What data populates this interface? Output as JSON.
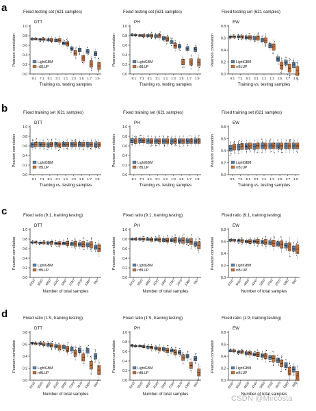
{
  "watermark": "CSDN @Mircosta",
  "colors": {
    "lightgbm": "#5b7fa6",
    "rrblup": "#c0703a",
    "axis": "#222222"
  },
  "rows": [
    {
      "letter": "a",
      "xlabel": "Training vs. testing samples",
      "panels": [
        {
          "title": "Fixed testing set (621 samples)",
          "trait": "DTT"
        },
        {
          "title": "Fixed testing set (621 samples)",
          "trait": "PH"
        },
        {
          "title": "Fixed testing set (621 samples)",
          "trait": "EW"
        }
      ]
    },
    {
      "letter": "b",
      "xlabel": "Training vs. testing samples",
      "panels": [
        {
          "title": "Fixed training set (621 samples)",
          "trait": "DTT"
        },
        {
          "title": "Fixed training set (621 samples)",
          "trait": "PH"
        },
        {
          "title": "Fixed training set (621 samples)",
          "trait": "EW"
        }
      ]
    },
    {
      "letter": "c",
      "xlabel": "Number of total samples",
      "panels": [
        {
          "title": "Fixed ratio (9:1, training:testing)",
          "trait": "DTT"
        },
        {
          "title": "Fixed ratio (9:1, training:testing)",
          "trait": "PH"
        },
        {
          "title": "Fixed ratio (9:1, training:testing)",
          "trait": "EW"
        }
      ]
    },
    {
      "letter": "d",
      "xlabel": "Number of total samples",
      "panels": [
        {
          "title": "Fixed ratio (1:9, training:testing)",
          "trait": "DTT"
        },
        {
          "title": "Fixed ratio (1:9, training:testing)",
          "trait": "PH"
        },
        {
          "title": "Fixed ratio (1:9, training:testing)",
          "trait": "EW"
        }
      ]
    }
  ],
  "chart_data": [
    {
      "type": "box",
      "row": "a",
      "trait": "DTT",
      "title": "Fixed testing set (621 samples)",
      "xlabel": "Training vs. testing samples",
      "ylabel": "Pearson correlation",
      "ylim": [
        0,
        1.0
      ],
      "yticks": [
        0,
        0.2,
        0.4,
        0.6,
        0.8,
        1.0
      ],
      "categories": [
        "9:1",
        "7:1",
        "5:1",
        "3:1",
        "1:1",
        "1:3",
        "1:5",
        "1:7",
        "1:9"
      ],
      "series": [
        {
          "name": "LightGBM",
          "medians": [
            0.73,
            0.72,
            0.71,
            0.7,
            0.64,
            0.53,
            0.5,
            0.47,
            0.42
          ]
        },
        {
          "name": "rrBLUP",
          "medians": [
            0.73,
            0.72,
            0.71,
            0.7,
            0.63,
            0.44,
            0.33,
            0.21,
            0.17
          ]
        }
      ]
    },
    {
      "type": "box",
      "row": "a",
      "trait": "PH",
      "title": "Fixed testing set (621 samples)",
      "xlabel": "Training vs. testing samples",
      "ylabel": "Pearson correlation",
      "ylim": [
        0,
        1.0
      ],
      "yticks": [
        0,
        0.2,
        0.4,
        0.6,
        0.8,
        1.0
      ],
      "categories": [
        "9:1",
        "7:1",
        "5:1",
        "3:1",
        "1:1",
        "1:3",
        "1:5",
        "1:7",
        "1:9"
      ],
      "series": [
        {
          "name": "LightGBM",
          "medians": [
            0.81,
            0.8,
            0.8,
            0.79,
            0.75,
            0.67,
            0.58,
            0.53,
            0.51
          ]
        },
        {
          "name": "rrBLUP",
          "medians": [
            0.81,
            0.8,
            0.8,
            0.79,
            0.73,
            0.59,
            0.25,
            0.25,
            0.24
          ]
        }
      ]
    },
    {
      "type": "box",
      "row": "a",
      "trait": "EW",
      "title": "Fixed testing set (621 samples)",
      "xlabel": "Training vs. testing samples",
      "ylabel": "Pearson correlation",
      "ylim": [
        0,
        0.8
      ],
      "yticks": [
        0,
        0.2,
        0.4,
        0.6,
        0.8
      ],
      "categories": [
        "9:1",
        "7:1",
        "5:1",
        "3:1",
        "1:1",
        "1:3",
        "1:5",
        "1:7",
        "1:9"
      ],
      "series": [
        {
          "name": "LightGBM",
          "medians": [
            0.62,
            0.62,
            0.61,
            0.6,
            0.57,
            0.47,
            0.25,
            0.19,
            0.15
          ]
        },
        {
          "name": "rrBLUP",
          "medians": [
            0.62,
            0.62,
            0.61,
            0.6,
            0.56,
            0.45,
            0.14,
            0.1,
            0.05
          ]
        }
      ]
    },
    {
      "type": "box",
      "row": "b",
      "trait": "DTT",
      "title": "Fixed training set (621 samples)",
      "xlabel": "Training vs. testing samples",
      "ylabel": "Pearson correlation",
      "ylim": [
        0,
        1.0
      ],
      "yticks": [
        0,
        0.2,
        0.4,
        0.6,
        0.8,
        1.0
      ],
      "categories": [
        "9:1",
        "7:1",
        "5:1",
        "3:1",
        "1:1",
        "1:3",
        "1:5",
        "1:7",
        "1:9"
      ],
      "series": [
        {
          "name": "LightGBM",
          "medians": [
            0.62,
            0.63,
            0.62,
            0.63,
            0.63,
            0.63,
            0.63,
            0.63,
            0.62
          ]
        },
        {
          "name": "rrBLUP",
          "medians": [
            0.63,
            0.63,
            0.63,
            0.62,
            0.63,
            0.63,
            0.63,
            0.63,
            0.63
          ]
        }
      ]
    },
    {
      "type": "box",
      "row": "b",
      "trait": "PH",
      "title": "Fixed training set (621 samples)",
      "xlabel": "Training vs. testing samples",
      "ylabel": "Pearson correlation",
      "ylim": [
        0,
        1.0
      ],
      "yticks": [
        0,
        0.2,
        0.4,
        0.6,
        0.8,
        1.0
      ],
      "categories": [
        "9:1",
        "7:1",
        "5:1",
        "3:1",
        "1:1",
        "1:3",
        "1:5",
        "1:7",
        "1:9"
      ],
      "series": [
        {
          "name": "LightGBM",
          "medians": [
            0.71,
            0.71,
            0.7,
            0.7,
            0.7,
            0.7,
            0.7,
            0.7,
            0.7
          ]
        },
        {
          "name": "rrBLUP",
          "medians": [
            0.7,
            0.71,
            0.7,
            0.7,
            0.7,
            0.7,
            0.7,
            0.7,
            0.7
          ]
        }
      ]
    },
    {
      "type": "box",
      "row": "b",
      "trait": "EW",
      "title": "Fixed training set (621 samples)",
      "xlabel": "Training vs. testing samples",
      "ylabel": "Pearson correlation",
      "ylim": [
        0,
        0.8
      ],
      "yticks": [
        0,
        0.2,
        0.4,
        0.6,
        0.8
      ],
      "categories": [
        "9:1",
        "7:1",
        "5:1",
        "3:1",
        "1:1",
        "1:3",
        "1:5",
        "1:7",
        "1:9"
      ],
      "series": [
        {
          "name": "LightGBM",
          "medians": [
            0.44,
            0.46,
            0.47,
            0.47,
            0.48,
            0.48,
            0.48,
            0.48,
            0.48
          ]
        },
        {
          "name": "rrBLUP",
          "medians": [
            0.46,
            0.47,
            0.48,
            0.48,
            0.48,
            0.48,
            0.48,
            0.48,
            0.48
          ]
        }
      ]
    },
    {
      "type": "box",
      "row": "c",
      "trait": "DTT",
      "title": "Fixed ratio (9:1, training:testing)",
      "xlabel": "Number of total samples",
      "ylabel": "Pearson correlation",
      "ylim": [
        0,
        1.0
      ],
      "yticks": [
        0,
        0.2,
        0.4,
        0.6,
        0.8,
        1.0
      ],
      "categories": [
        "6210",
        "5520",
        "4830",
        "4140",
        "3450",
        "2760",
        "2070",
        "1380",
        "690"
      ],
      "series": [
        {
          "name": "LightGBM",
          "medians": [
            0.73,
            0.72,
            0.72,
            0.71,
            0.71,
            0.7,
            0.69,
            0.68,
            0.63
          ]
        },
        {
          "name": "rrBLUP",
          "medians": [
            0.73,
            0.72,
            0.72,
            0.71,
            0.71,
            0.7,
            0.69,
            0.68,
            0.61
          ]
        }
      ]
    },
    {
      "type": "box",
      "row": "c",
      "trait": "PH",
      "title": "Fixed ratio (9:1, training:testing)",
      "xlabel": "Number of total samples",
      "ylabel": "Pearson correlation",
      "ylim": [
        0,
        1.0
      ],
      "yticks": [
        0,
        0.2,
        0.4,
        0.6,
        0.8,
        1.0
      ],
      "categories": [
        "6210",
        "5520",
        "4830",
        "4140",
        "3450",
        "2760",
        "2070",
        "1380",
        "690"
      ],
      "series": [
        {
          "name": "LightGBM",
          "medians": [
            0.8,
            0.8,
            0.79,
            0.79,
            0.78,
            0.78,
            0.77,
            0.76,
            0.7
          ]
        },
        {
          "name": "rrBLUP",
          "medians": [
            0.8,
            0.8,
            0.79,
            0.79,
            0.78,
            0.78,
            0.77,
            0.75,
            0.67
          ]
        }
      ]
    },
    {
      "type": "box",
      "row": "c",
      "trait": "EW",
      "title": "Fixed ratio (9:1, training:testing)",
      "xlabel": "Number of total samples",
      "ylabel": "Pearson correlation",
      "ylim": [
        0,
        0.8
      ],
      "yticks": [
        0,
        0.2,
        0.4,
        0.6,
        0.8
      ],
      "categories": [
        "6210",
        "5520",
        "4830",
        "4140",
        "3450",
        "2760",
        "2070",
        "1380",
        "690"
      ],
      "series": [
        {
          "name": "LightGBM",
          "medians": [
            0.62,
            0.61,
            0.6,
            0.6,
            0.59,
            0.58,
            0.56,
            0.53,
            0.48
          ]
        },
        {
          "name": "rrBLUP",
          "medians": [
            0.62,
            0.61,
            0.6,
            0.6,
            0.59,
            0.57,
            0.55,
            0.51,
            0.47
          ]
        }
      ]
    },
    {
      "type": "box",
      "row": "d",
      "trait": "DTT",
      "title": "Fixed ratio (1:9, training:testing)",
      "xlabel": "Number of total samples",
      "ylabel": "Pearson correlation",
      "ylim": [
        0,
        0.8
      ],
      "yticks": [
        0,
        0.2,
        0.4,
        0.6,
        0.8
      ],
      "categories": [
        "6210",
        "5520",
        "4830",
        "4140",
        "3450",
        "2760",
        "2070",
        "1380",
        "690"
      ],
      "series": [
        {
          "name": "LightGBM",
          "medians": [
            0.62,
            0.61,
            0.59,
            0.57,
            0.55,
            0.52,
            0.5,
            0.49,
            0.4
          ]
        },
        {
          "name": "rrBLUP",
          "medians": [
            0.61,
            0.6,
            0.58,
            0.55,
            0.52,
            0.45,
            0.38,
            0.25,
            0.17
          ]
        }
      ]
    },
    {
      "type": "box",
      "row": "d",
      "trait": "PH",
      "title": "Fixed ratio (1:9, training:testing)",
      "xlabel": "Number of total samples",
      "ylabel": "Pearson correlation",
      "ylim": [
        0,
        1.0
      ],
      "yticks": [
        0,
        0.2,
        0.4,
        0.6,
        0.8,
        1.0
      ],
      "categories": [
        "6210",
        "5520",
        "4830",
        "4140",
        "3450",
        "2760",
        "2070",
        "1380",
        "690"
      ],
      "series": [
        {
          "name": "LightGBM",
          "medians": [
            0.72,
            0.71,
            0.69,
            0.67,
            0.65,
            0.62,
            0.58,
            0.5,
            0.45
          ]
        },
        {
          "name": "rrBLUP",
          "medians": [
            0.71,
            0.7,
            0.68,
            0.65,
            0.62,
            0.58,
            0.47,
            0.31,
            0.16
          ]
        }
      ]
    },
    {
      "type": "box",
      "row": "d",
      "trait": "EW",
      "title": "Fixed ratio (1:9, training:testing)",
      "xlabel": "Number of total samples",
      "ylabel": "Pearson correlation",
      "ylim": [
        0,
        0.8
      ],
      "yticks": [
        0,
        0.2,
        0.4,
        0.6,
        0.8
      ],
      "categories": [
        "6210",
        "5520",
        "4830",
        "4140",
        "3450",
        "2760",
        "2070",
        "1380",
        "690"
      ],
      "series": [
        {
          "name": "LightGBM",
          "medians": [
            0.49,
            0.47,
            0.45,
            0.43,
            0.41,
            0.38,
            0.33,
            0.25,
            0.18
          ]
        },
        {
          "name": "rrBLUP",
          "medians": [
            0.49,
            0.47,
            0.45,
            0.43,
            0.4,
            0.36,
            0.28,
            0.15,
            0.07
          ]
        }
      ]
    }
  ]
}
